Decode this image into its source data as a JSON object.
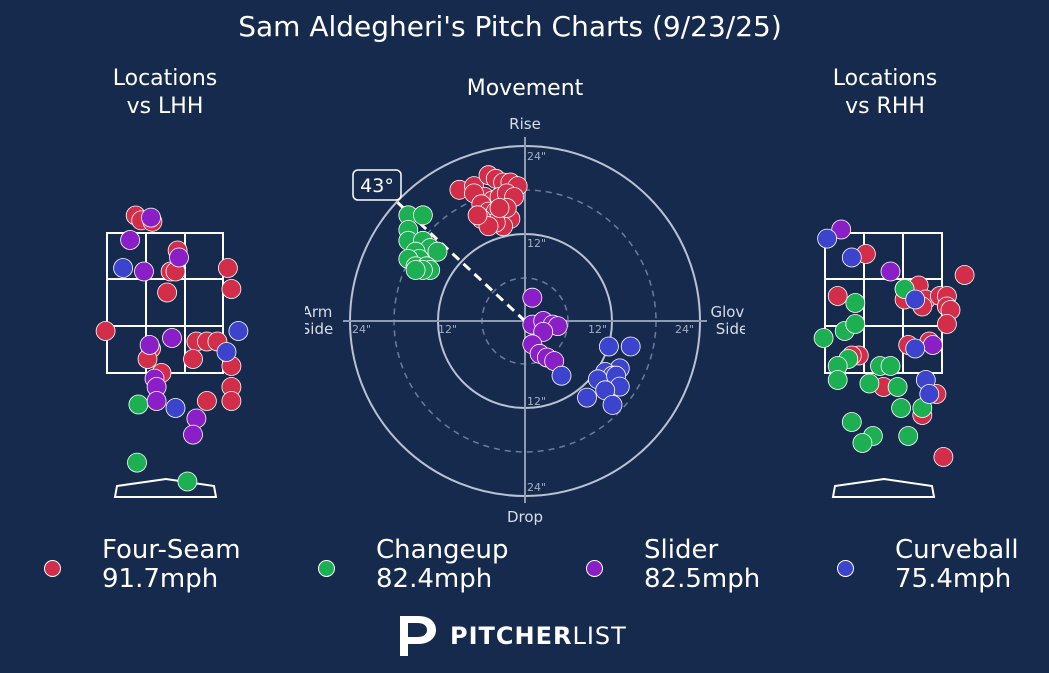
{
  "title": "Sam Aldegheri's Pitch Charts (9/23/25)",
  "subtitles": {
    "lhh_line1": "Locations",
    "lhh_line2": "vs LHH",
    "movement": "Movement",
    "rhh_line1": "Locations",
    "rhh_line2": "vs RHH"
  },
  "colors": {
    "background": "#162a4d",
    "four_seam": "#d22d49",
    "changeup": "#1db053",
    "slider": "#8a1fc7",
    "curveball": "#3c44cd"
  },
  "movement_labels": {
    "rise": "Rise",
    "drop": "Drop",
    "arm": "Arm",
    "arm2": "Side",
    "glove": "Glove",
    "glove2": "Side",
    "angle": "43°",
    "r12": "12\"",
    "r24": "24\""
  },
  "legend": [
    {
      "name": "Four-Seam",
      "velo": "91.7mph",
      "key": "four_seam"
    },
    {
      "name": "Changeup",
      "velo": "82.4mph",
      "key": "changeup"
    },
    {
      "name": "Slider",
      "velo": "82.5mph",
      "key": "slider"
    },
    {
      "name": "Curveball",
      "velo": "75.4mph",
      "key": "curveball"
    }
  ],
  "brand": {
    "part1": "PITCHER",
    "part2": "LIST"
  },
  "chart_data": [
    {
      "type": "scatter",
      "title": "Locations vs LHH",
      "xlim": [
        -1.7,
        1.4
      ],
      "ylim": [
        0.0,
        4.6
      ],
      "series": [
        {
          "name": "Four-Seam",
          "points": [
            [
              -0.42,
              3.75
            ],
            [
              -0.34,
              3.68
            ],
            [
              -0.18,
              3.66
            ],
            [
              0.18,
              3.25
            ],
            [
              0.08,
              2.95
            ],
            [
              0.15,
              2.95
            ],
            [
              0.03,
              2.65
            ],
            [
              -0.85,
              2.1
            ],
            [
              -0.2,
              1.85
            ],
            [
              -0.25,
              1.7
            ],
            [
              0.45,
              1.95
            ],
            [
              0.6,
              1.95
            ],
            [
              0.75,
              1.95
            ],
            [
              0.4,
              1.7
            ],
            [
              0.95,
              1.6
            ],
            [
              -0.05,
              1.5
            ],
            [
              0.95,
              1.3
            ],
            [
              0.6,
              1.1
            ],
            [
              0.95,
              1.1
            ],
            [
              0.9,
              3.0
            ],
            [
              0.95,
              2.7
            ]
          ]
        },
        {
          "name": "Changeup",
          "points": [
            [
              -0.38,
              1.05
            ],
            [
              -0.4,
              0.22
            ],
            [
              0.32,
              -0.05
            ]
          ]
        },
        {
          "name": "Slider",
          "points": [
            [
              -0.2,
              3.72
            ],
            [
              -0.5,
              3.4
            ],
            [
              -0.3,
              2.95
            ],
            [
              0.2,
              3.15
            ],
            [
              -0.22,
              1.9
            ],
            [
              0.1,
              2.0
            ],
            [
              -0.15,
              1.42
            ],
            [
              -0.12,
              1.3
            ],
            [
              -0.12,
              1.1
            ],
            [
              0.45,
              0.85
            ],
            [
              0.4,
              0.62
            ]
          ]
        },
        {
          "name": "Curveball",
          "points": [
            [
              -0.6,
              3.0
            ],
            [
              1.05,
              2.1
            ],
            [
              0.88,
              1.8
            ],
            [
              0.15,
              1.0
            ]
          ]
        }
      ]
    },
    {
      "type": "scatter",
      "title": "Movement",
      "xlabel": "Arm Side / Glove Side",
      "ylabel": "Drop / Rise",
      "xlim": [
        -24,
        24
      ],
      "ylim": [
        -24,
        24
      ],
      "units": "inches",
      "series": [
        {
          "name": "Four-Seam",
          "points": [
            [
              -9,
              18
            ],
            [
              -7,
              18.5
            ],
            [
              -5,
              20
            ],
            [
              -4,
              19.5
            ],
            [
              -3,
              19
            ],
            [
              -2,
              19
            ],
            [
              -1,
              18.5
            ],
            [
              -5.5,
              17
            ],
            [
              -4.5,
              16.5
            ],
            [
              -3.5,
              17
            ],
            [
              -2.5,
              17.5
            ],
            [
              -1.5,
              17
            ],
            [
              -7,
              17.5
            ],
            [
              -6,
              16
            ],
            [
              -5,
              15
            ],
            [
              -4,
              15
            ],
            [
              -3,
              14.5
            ],
            [
              -2,
              14
            ],
            [
              -3,
              13
            ],
            [
              -4,
              13.5
            ],
            [
              -6,
              14
            ],
            [
              -5,
              13
            ],
            [
              -2.5,
              15.5
            ],
            [
              -3.5,
              15.5
            ],
            [
              -6.5,
              14.5
            ]
          ]
        },
        {
          "name": "Changeup",
          "points": [
            [
              -16,
              14.5
            ],
            [
              -14,
              14.5
            ],
            [
              -16,
              12.5
            ],
            [
              -16,
              11
            ],
            [
              -14,
              11
            ],
            [
              -13,
              10
            ],
            [
              -12,
              9.5
            ],
            [
              -15,
              9.5
            ],
            [
              -14.5,
              8.5
            ],
            [
              -16,
              8.5
            ],
            [
              -15,
              7.5
            ],
            [
              -13.5,
              7.5
            ],
            [
              -13,
              7
            ],
            [
              -14,
              7
            ],
            [
              -15,
              7
            ]
          ]
        },
        {
          "name": "Slider",
          "points": [
            [
              1,
              3.2
            ],
            [
              1,
              -0.5
            ],
            [
              2.5,
              0
            ],
            [
              3.8,
              -0.5
            ],
            [
              4.5,
              -0.7
            ],
            [
              2.5,
              -1.5
            ],
            [
              1,
              -3.2
            ],
            [
              2,
              -4.5
            ],
            [
              3,
              -5
            ],
            [
              4,
              -5.5
            ]
          ]
        },
        {
          "name": "Curveball",
          "points": [
            [
              11.5,
              -3.5
            ],
            [
              14.5,
              -3.5
            ],
            [
              13,
              -6.5
            ],
            [
              11,
              -7
            ],
            [
              12,
              -7.5
            ],
            [
              10,
              -8
            ],
            [
              12.5,
              -7.5
            ],
            [
              13,
              -9
            ],
            [
              11,
              -9.5
            ],
            [
              8.5,
              -10.5
            ],
            [
              12,
              -11.5
            ],
            [
              5,
              -7.5
            ]
          ]
        }
      ],
      "arm_angle": "43°"
    },
    {
      "type": "scatter",
      "title": "Locations vs RHH",
      "xlim": [
        -1.6,
        1.5
      ],
      "ylim": [
        0.0,
        4.6
      ],
      "series": [
        {
          "name": "Four-Seam",
          "points": [
            [
              -0.25,
              3.2
            ],
            [
              -0.65,
              2.6
            ],
            [
              0.3,
              2.7
            ],
            [
              0.5,
              2.75
            ],
            [
              0.6,
              2.55
            ],
            [
              0.8,
              2.6
            ],
            [
              0.9,
              2.6
            ],
            [
              0.9,
              2.45
            ],
            [
              0.95,
              2.4
            ],
            [
              1.15,
              2.9
            ],
            [
              0.55,
              2.45
            ],
            [
              0.3,
              2.55
            ],
            [
              0.9,
              2.2
            ],
            [
              -0.35,
              1.75
            ],
            [
              0.35,
              1.9
            ],
            [
              0.65,
              1.95
            ],
            [
              -0.45,
              1.75
            ],
            [
              0.0,
              1.3
            ],
            [
              0.75,
              1.2
            ],
            [
              0.55,
              0.9
            ],
            [
              0.85,
              0.3
            ]
          ]
        },
        {
          "name": "Changeup",
          "points": [
            [
              0.3,
              2.7
            ],
            [
              -0.4,
              2.5
            ],
            [
              -0.85,
              2.0
            ],
            [
              -0.55,
              2.1
            ],
            [
              -0.4,
              2.2
            ],
            [
              -0.5,
              1.7
            ],
            [
              -0.65,
              1.6
            ],
            [
              -0.2,
              1.35
            ],
            [
              -0.65,
              1.4
            ],
            [
              -0.05,
              1.6
            ],
            [
              0.1,
              1.6
            ],
            [
              0.2,
              1.3
            ],
            [
              0.25,
              1.0
            ],
            [
              0.55,
              1.0
            ],
            [
              -0.45,
              0.8
            ],
            [
              0.35,
              0.6
            ],
            [
              -0.15,
              0.6
            ],
            [
              -0.3,
              0.5
            ]
          ]
        },
        {
          "name": "Slider",
          "points": [
            [
              -0.6,
              3.55
            ],
            [
              0.1,
              2.95
            ],
            [
              0.7,
              1.9
            ]
          ]
        },
        {
          "name": "Curveball",
          "points": [
            [
              -0.8,
              3.42
            ],
            [
              -0.45,
              3.15
            ],
            [
              0.45,
              2.55
            ],
            [
              0.45,
              1.85
            ],
            [
              0.6,
              1.4
            ],
            [
              0.65,
              1.2
            ]
          ]
        }
      ]
    }
  ]
}
